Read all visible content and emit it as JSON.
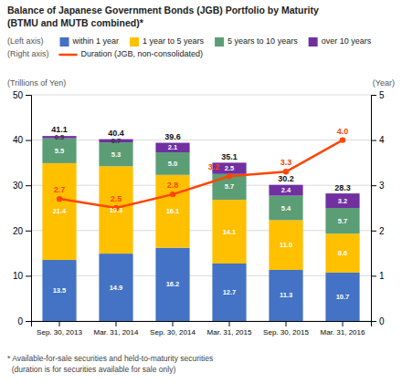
{
  "chart_data": {
    "type": "bar",
    "title": "Balance of Japanese Government Bonds (JGB) Portfolio by Maturity",
    "subtitle": "(BTMU and MUTB combined)*",
    "categories": [
      "Sep. 30, 2013",
      "Mar. 31, 2014",
      "Sep. 30, 2014",
      "Mar. 31, 2015",
      "Sep. 30, 2015",
      "Mar. 31, 2016"
    ],
    "stacked": true,
    "data_labels": true,
    "grid": true,
    "series": [
      {
        "name": "within 1 year",
        "color": "#4472C4",
        "values": [
          13.5,
          14.9,
          16.2,
          12.7,
          11.3,
          10.7
        ]
      },
      {
        "name": "1 year to 5 years",
        "color": "#FFC000",
        "values": [
          21.4,
          19.3,
          16.1,
          14.1,
          11.0,
          8.6
        ],
        "value_labels": [
          "21.4",
          "19.3",
          "16.1",
          "14.1",
          "11.0",
          "8.6"
        ]
      },
      {
        "name": "5 years to 10 years",
        "color": "#5B9E76",
        "values": [
          5.5,
          5.3,
          5.0,
          5.7,
          5.4,
          5.7
        ],
        "value_labels": [
          "5.5",
          "5.3",
          "5.0",
          "5.7",
          "5.4",
          "5.7"
        ]
      },
      {
        "name": "over 10 years",
        "color": "#7030A0",
        "values": [
          0.5,
          0.7,
          2.1,
          2.5,
          2.4,
          3.2
        ]
      },
      {
        "name": "Duration (JGB, non-consolidated)",
        "type": "line",
        "axis": "y2",
        "color": "#FF4500",
        "marker": "circle",
        "values": [
          2.7,
          2.5,
          2.8,
          3.2,
          3.3,
          4.0
        ],
        "value_labels": [
          "2.7",
          "2.5",
          "2.8",
          "3.2",
          "3.3",
          "4.0"
        ]
      }
    ],
    "totals": [
      41.1,
      40.4,
      39.6,
      35.1,
      30.2,
      28.3
    ],
    "y_label": "(Trillions of Yen)",
    "y2_label": "(Year)",
    "ylim": [
      0,
      50
    ],
    "yticks": [
      0,
      10,
      20,
      30,
      40,
      50
    ],
    "y2lim": [
      0,
      5.0
    ],
    "y2ticks": [
      0,
      1,
      2,
      3,
      4,
      5
    ],
    "annotations": [
      "(Left axis)",
      "(Right axis)"
    ],
    "footnote": [
      "* Available-for-sale securities and held-to-maturity securities",
      "  (duration is for securities available for sale only)"
    ]
  }
}
